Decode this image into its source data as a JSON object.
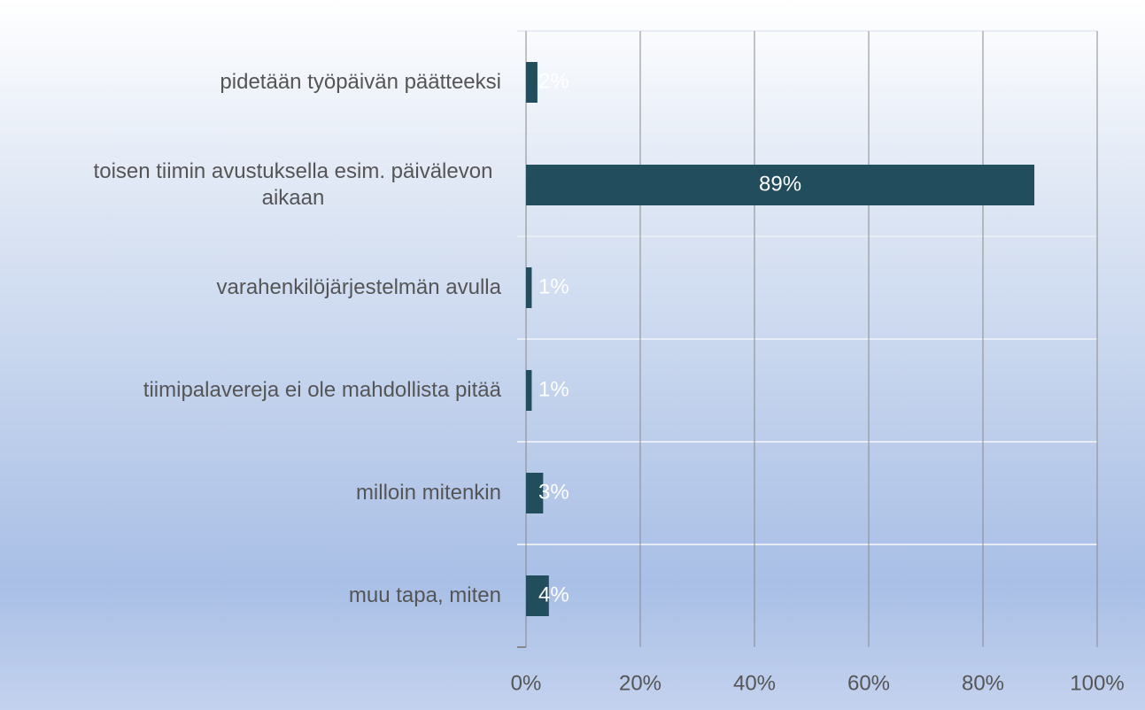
{
  "chart_data": {
    "type": "bar",
    "orientation": "horizontal",
    "categories": [
      "pidetään työpäivän päätteeksi",
      "toisen tiimin avustuksella esim. päivälevon aikaan",
      "varahenkilöjärjestelmän avulla",
      "tiimipalavereja ei ole mahdollista pitää",
      "milloin mitenkin",
      "muu tapa, miten"
    ],
    "values": [
      2,
      89,
      1,
      1,
      3,
      4
    ],
    "value_labels": [
      "2%",
      "89%",
      "1%",
      "1%",
      "3%",
      "4%"
    ],
    "color": "#214d5c",
    "xlim": [
      0,
      100
    ],
    "xticks": [
      {
        "value": 0,
        "label": "0%"
      },
      {
        "value": 20,
        "label": "20%"
      },
      {
        "value": 40,
        "label": "40%"
      },
      {
        "value": 60,
        "label": "60%"
      },
      {
        "value": 80,
        "label": "80%"
      },
      {
        "value": 100,
        "label": "100%"
      }
    ],
    "grid": true
  }
}
